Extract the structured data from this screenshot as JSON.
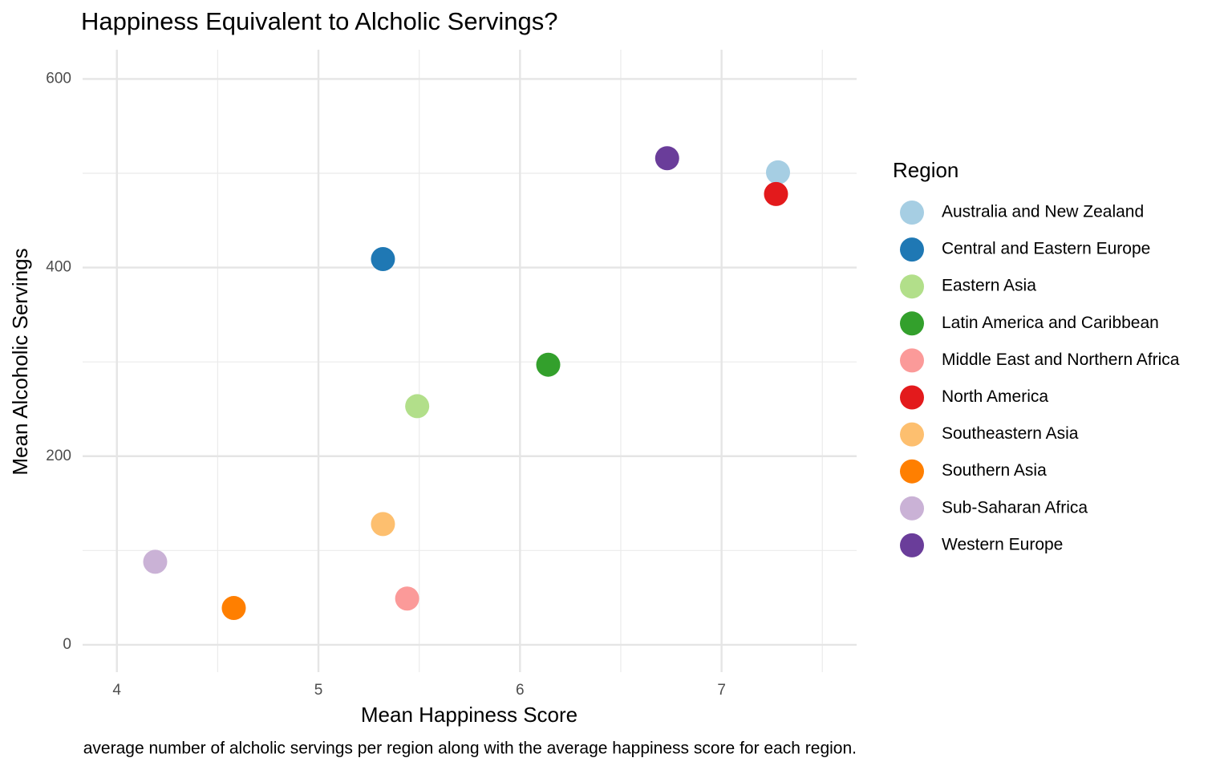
{
  "chart_data": {
    "type": "scatter",
    "title": "Happiness Equivalent to Alcholic Servings?",
    "caption": "average number of alcholic servings per region along with the average happiness score for each region.",
    "x_label": "Mean Happiness Score",
    "y_label": "Mean Alcoholic Servings",
    "legend_title": "Region",
    "legend_position": "right",
    "grid": true,
    "xlim": [
      3.83,
      7.67
    ],
    "ylim": [
      -29,
      631
    ],
    "xticks": [
      4,
      5,
      6,
      7
    ],
    "yticks": [
      0,
      200,
      400,
      600
    ],
    "xminor": [
      4.5,
      5.5,
      6.5,
      7.5
    ],
    "yminor": [
      100,
      300,
      500
    ],
    "series": [
      {
        "name": "Australia and New Zealand",
        "color": "#a6cee3",
        "x": [
          7.28
        ],
        "values": [
          501
        ]
      },
      {
        "name": "Central and Eastern Europe",
        "color": "#1f78b4",
        "x": [
          5.32
        ],
        "values": [
          409
        ]
      },
      {
        "name": "Eastern Asia",
        "color": "#b2df8a",
        "x": [
          5.49
        ],
        "values": [
          253
        ]
      },
      {
        "name": "Latin America and Caribbean",
        "color": "#33a02c",
        "x": [
          6.14
        ],
        "values": [
          297
        ]
      },
      {
        "name": "Middle East and Northern Africa",
        "color": "#fb9a99",
        "x": [
          5.44
        ],
        "values": [
          49
        ]
      },
      {
        "name": "North America",
        "color": "#e31a1c",
        "x": [
          7.27
        ],
        "values": [
          478
        ]
      },
      {
        "name": "Southeastern Asia",
        "color": "#fdbf6f",
        "x": [
          5.32
        ],
        "values": [
          128
        ]
      },
      {
        "name": "Southern Asia",
        "color": "#ff7f00",
        "x": [
          4.58
        ],
        "values": [
          39
        ]
      },
      {
        "name": "Sub-Saharan Africa",
        "color": "#cab2d6",
        "x": [
          4.19
        ],
        "values": [
          88
        ]
      },
      {
        "name": "Western Europe",
        "color": "#6a3d9a",
        "x": [
          6.73
        ],
        "values": [
          516
        ]
      }
    ]
  }
}
